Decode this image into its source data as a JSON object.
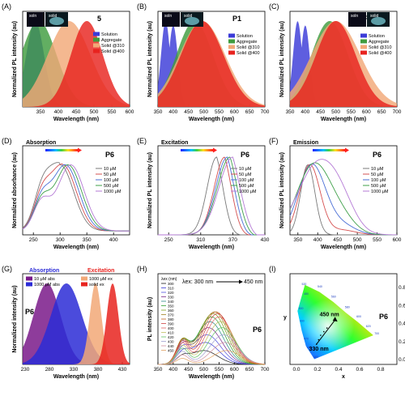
{
  "figure": {
    "panels": [
      {
        "id": "A",
        "label": "(A)",
        "title": "5",
        "xlabel": "Wavelength (nm)",
        "ylabel": "Normalized PL intensity (au)",
        "xlim": [
          300,
          600
        ],
        "xticks": [
          350,
          400,
          450,
          500,
          550,
          600
        ],
        "inset_labels": [
          "soln",
          "solid"
        ],
        "legend": [
          {
            "name": "Solution",
            "color": "#3a3ad8"
          },
          {
            "name": "Aggregate",
            "color": "#3f9c3f"
          },
          {
            "name": "Solid @310",
            "color": "#f2a877"
          },
          {
            "name": "Solid @400",
            "color": "#e8231f"
          }
        ]
      },
      {
        "id": "B",
        "label": "(B)",
        "title": "P1",
        "xlabel": "Wavelength (nm)",
        "ylabel": "Normalized PL intensity (au)",
        "xlim": [
          350,
          700
        ],
        "xticks": [
          350,
          400,
          450,
          500,
          550,
          600,
          650,
          700
        ],
        "inset_labels": [
          "soln",
          "solid"
        ],
        "legend": [
          {
            "name": "Solution",
            "color": "#3a3ad8"
          },
          {
            "name": "Aggregate",
            "color": "#3f9c3f"
          },
          {
            "name": "Solid @310",
            "color": "#f2a877"
          },
          {
            "name": "Solid @400",
            "color": "#e8231f"
          }
        ]
      },
      {
        "id": "C",
        "label": "(C)",
        "title": "P6",
        "xlabel": "Wavelength (nm)",
        "ylabel": "Normalized PL intensity (au)",
        "xlim": [
          350,
          700
        ],
        "xticks": [
          350,
          400,
          450,
          500,
          550,
          600,
          650,
          700
        ],
        "inset_labels": [
          "soln",
          "solid"
        ],
        "legend": [
          {
            "name": "Solution",
            "color": "#3a3ad8"
          },
          {
            "name": "Aggregate",
            "color": "#3f9c3f"
          },
          {
            "name": "Solid @310",
            "color": "#f2a877"
          },
          {
            "name": "Solid @400",
            "color": "#e8231f"
          }
        ]
      },
      {
        "id": "D",
        "label": "(D)",
        "title": "P6",
        "subtitle": "Absorption",
        "xlabel": "Wavelength (nm)",
        "ylabel": "Normalized absorbance (au)",
        "xlim": [
          230,
          430
        ],
        "xticks": [
          250,
          300,
          350,
          400
        ],
        "legend": [
          {
            "name": "10 μM",
            "color": "#7a7a7a"
          },
          {
            "name": "50 μM",
            "color": "#d65050"
          },
          {
            "name": "100 μM",
            "color": "#4a6fd6"
          },
          {
            "name": "500 μM",
            "color": "#3fa04a"
          },
          {
            "name": "1000 μM",
            "color": "#b57ad6"
          }
        ]
      },
      {
        "id": "E",
        "label": "(E)",
        "title": "P6",
        "subtitle": "Excitation",
        "xlabel": "Wavelength (nm)",
        "ylabel": "Normalized PL intensity (au)",
        "xlim": [
          230,
          430
        ],
        "xticks": [
          250,
          310,
          370,
          430
        ],
        "legend": [
          {
            "name": "10 μM",
            "color": "#7a7a7a"
          },
          {
            "name": "50 μM",
            "color": "#d65050"
          },
          {
            "name": "100 μM",
            "color": "#4a6fd6"
          },
          {
            "name": "500 μM",
            "color": "#3fa04a"
          },
          {
            "name": "1000 μM",
            "color": "#b57ad6"
          }
        ]
      },
      {
        "id": "F",
        "label": "(F)",
        "title": "P6",
        "subtitle": "Emission",
        "xlabel": "Wavelength (nm)",
        "ylabel": "Normalized PL intensity (au)",
        "xlim": [
          330,
          600
        ],
        "xticks": [
          350,
          400,
          450,
          500,
          550,
          600
        ],
        "legend": [
          {
            "name": "10 μM",
            "color": "#7a7a7a"
          },
          {
            "name": "50 μM",
            "color": "#d65050"
          },
          {
            "name": "100 μM",
            "color": "#4a6fd6"
          },
          {
            "name": "500 μM",
            "color": "#3fa04a"
          },
          {
            "name": "1000 μM",
            "color": "#b57ad6"
          }
        ]
      },
      {
        "id": "G",
        "label": "(G)",
        "title": "P6",
        "subtitle_left": "Absorption",
        "subtitle_right": "Excitation",
        "xlabel": "Wavelength (nm)",
        "ylabel": "Normalized intensity (au)",
        "xlim": [
          225,
          445
        ],
        "xticks": [
          230,
          280,
          330,
          380,
          430
        ],
        "legend": [
          {
            "name": "10 μM abs",
            "color": "#7a1a8a"
          },
          {
            "name": "1000 μM abs",
            "color": "#2b2bd6"
          },
          {
            "name": "1000 μM ex",
            "color": "#f2a877"
          },
          {
            "name": "solid ex",
            "color": "#e8231f"
          }
        ]
      },
      {
        "id": "H",
        "label": "(H)",
        "title": "P6",
        "xlabel": "Wavelength (nm)",
        "ylabel": "PL intensity (au)",
        "xlim": [
          350,
          700
        ],
        "xticks": [
          350,
          400,
          450,
          500,
          550,
          600,
          650,
          700
        ],
        "arrow_start": "λex: 300 nm",
        "arrow_end": "450 nm",
        "legend_header": "λex (nm)",
        "excitations": [
          "300",
          "310",
          "320",
          "330",
          "340",
          "350",
          "360",
          "370",
          "380",
          "390",
          "400",
          "410",
          "420",
          "430",
          "440",
          "450"
        ]
      },
      {
        "id": "I",
        "label": "(I)",
        "title": "P6",
        "xlabel": "x",
        "ylabel": "y",
        "xticks": [
          "0.0",
          "0.2",
          "0.4",
          "0.6",
          "0.8"
        ],
        "yticks": [
          "0.0",
          "0.2",
          "0.4",
          "0.6",
          "0.8"
        ],
        "annot_top": "450 nm",
        "annot_bottom": "330 nm",
        "locus_labels": [
          "480",
          "500",
          "520",
          "540",
          "560",
          "580",
          "600",
          "620",
          "700",
          "380",
          "460",
          "470",
          "490"
        ]
      }
    ]
  },
  "chart_data": [
    {
      "type": "area",
      "panel": "A",
      "series": [
        {
          "name": "Solution",
          "peak": 335,
          "width": 25
        },
        {
          "name": "Aggregate",
          "peak": 345,
          "width": 50
        },
        {
          "name": "Solid @310",
          "peak": 430,
          "width": 60
        },
        {
          "name": "Solid @400",
          "peak": 480,
          "width": 45
        }
      ]
    },
    {
      "type": "area",
      "panel": "B",
      "series": [
        {
          "name": "Solution",
          "peaks": [
            375,
            400
          ],
          "width": 15
        },
        {
          "name": "Aggregate",
          "peak": 470,
          "width": 60
        },
        {
          "name": "Solid @310",
          "peak": 495,
          "width": 75
        },
        {
          "name": "Solid @400",
          "peak": 495,
          "width": 70
        }
      ]
    },
    {
      "type": "area",
      "panel": "C",
      "series": [
        {
          "name": "Solution",
          "peaks": [
            375,
            400
          ],
          "width": 15
        },
        {
          "name": "Aggregate",
          "peak": 480,
          "width": 60
        },
        {
          "name": "Solid @310",
          "peak": 500,
          "width": 80
        },
        {
          "name": "Solid @400",
          "peak": 500,
          "width": 65
        }
      ]
    },
    {
      "type": "line",
      "panel": "D",
      "series": [
        {
          "name": "10 μM",
          "peak": 300
        },
        {
          "name": "50 μM",
          "peak": 305
        },
        {
          "name": "100 μM",
          "peak": 310
        },
        {
          "name": "500 μM",
          "peak": 315
        },
        {
          "name": "1000 μM",
          "peak": 320
        }
      ]
    },
    {
      "type": "line",
      "panel": "E",
      "series": [
        {
          "name": "10 μM",
          "peak": 340
        },
        {
          "name": "50 μM",
          "peak": 355
        },
        {
          "name": "100 μM",
          "peak": 360
        },
        {
          "name": "500 μM",
          "peak": 365
        },
        {
          "name": "1000 μM",
          "peak": 370
        }
      ]
    },
    {
      "type": "line",
      "panel": "F",
      "series": [
        {
          "name": "10 μM",
          "peak": 375
        },
        {
          "name": "50 μM",
          "peak": 380
        },
        {
          "name": "100 μM",
          "peak": 385
        },
        {
          "name": "500 μM",
          "peak": 390
        },
        {
          "name": "1000 μM",
          "peak": 400
        }
      ]
    },
    {
      "type": "area",
      "panel": "G",
      "series": [
        {
          "name": "10 μM abs",
          "peak": 275
        },
        {
          "name": "1000 μM abs",
          "peak": 315
        },
        {
          "name": "1000 μM ex",
          "peak": 375
        },
        {
          "name": "solid ex",
          "peak": 410
        }
      ]
    },
    {
      "type": "line",
      "panel": "H",
      "series_peaks": [
        500,
        505,
        510,
        515,
        520,
        525,
        530,
        535,
        540,
        545,
        550,
        555,
        560,
        565,
        570,
        575
      ]
    },
    {
      "type": "scatter",
      "panel": "I",
      "points": [
        {
          "x": 0.19,
          "y": 0.17
        },
        {
          "x": 0.21,
          "y": 0.22
        },
        {
          "x": 0.23,
          "y": 0.27
        },
        {
          "x": 0.26,
          "y": 0.31
        },
        {
          "x": 0.29,
          "y": 0.35
        }
      ]
    }
  ]
}
